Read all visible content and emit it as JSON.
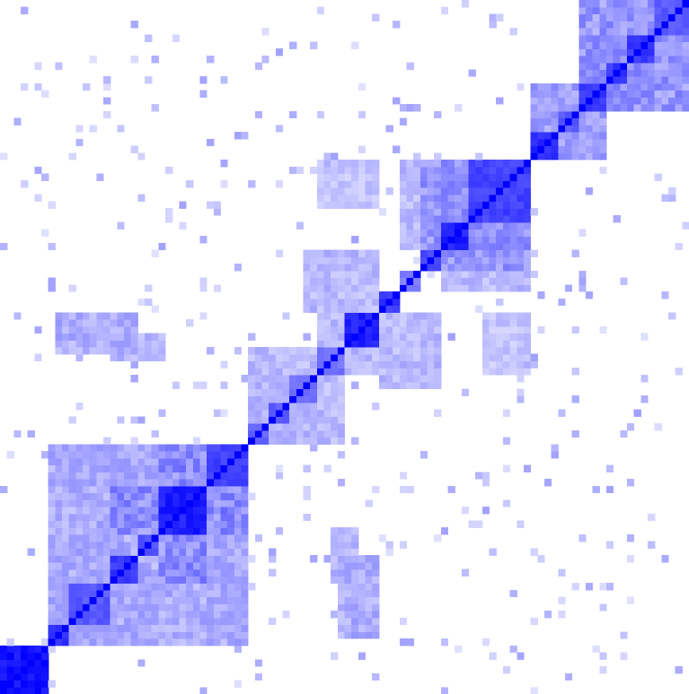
{
  "chart_data": {
    "type": "heatmap",
    "title": "",
    "xlabel": "",
    "ylabel": "",
    "grid": false,
    "legend": "none",
    "matrix_size": 100,
    "color_low": "#ffffff",
    "color_high": "#0000ff",
    "value_range": [
      0,
      1
    ],
    "clusters": [
      {
        "start": 0,
        "end": 7,
        "value": 1.0
      },
      {
        "start": 7,
        "end": 10,
        "value": 0.9
      },
      {
        "start": 10,
        "end": 16,
        "value": 0.7
      },
      {
        "start": 16,
        "end": 20,
        "value": 0.85
      },
      {
        "start": 20,
        "end": 23,
        "value": 0.75
      },
      {
        "start": 23,
        "end": 30,
        "value": 0.95
      },
      {
        "start": 30,
        "end": 36,
        "value": 0.8
      },
      {
        "start": 36,
        "end": 39,
        "value": 0.65
      },
      {
        "start": 39,
        "end": 42,
        "value": 0.7
      },
      {
        "start": 42,
        "end": 46,
        "value": 0.6
      },
      {
        "start": 46,
        "end": 50,
        "value": 0.6
      },
      {
        "start": 50,
        "end": 55,
        "value": 0.95
      },
      {
        "start": 55,
        "end": 58,
        "value": 0.85
      },
      {
        "start": 58,
        "end": 61,
        "value": 0.55
      },
      {
        "start": 61,
        "end": 64,
        "value": 0.75
      },
      {
        "start": 64,
        "end": 68,
        "value": 0.95
      },
      {
        "start": 68,
        "end": 77,
        "value": 0.8
      },
      {
        "start": 77,
        "end": 81,
        "value": 0.9
      },
      {
        "start": 81,
        "end": 84,
        "value": 0.7
      },
      {
        "start": 84,
        "end": 88,
        "value": 0.85
      },
      {
        "start": 88,
        "end": 91,
        "value": 0.85
      },
      {
        "start": 91,
        "end": 95,
        "value": 0.85
      },
      {
        "start": 95,
        "end": 100,
        "value": 0.7
      }
    ],
    "block_links": [
      {
        "rows": [
          7,
          23
        ],
        "cols": [
          7,
          36
        ],
        "value": 0.35
      },
      {
        "rows": [
          23,
          30
        ],
        "cols": [
          16,
          36
        ],
        "value": 0.5
      },
      {
        "rows": [
          30,
          36
        ],
        "cols": [
          7,
          36
        ],
        "value": 0.35
      },
      {
        "rows": [
          36,
          46
        ],
        "cols": [
          36,
          50
        ],
        "value": 0.3
      },
      {
        "rows": [
          46,
          50
        ],
        "cols": [
          46,
          55
        ],
        "value": 0.3
      },
      {
        "rows": [
          55,
          64
        ],
        "cols": [
          44,
          55
        ],
        "value": 0.3
      },
      {
        "rows": [
          58,
          64
        ],
        "cols": [
          64,
          77
        ],
        "value": 0.3
      },
      {
        "rows": [
          64,
          77
        ],
        "cols": [
          61,
          77
        ],
        "value": 0.45
      },
      {
        "rows": [
          70,
          77
        ],
        "cols": [
          46,
          55
        ],
        "value": 0.25
      },
      {
        "rows": [
          48,
          52
        ],
        "cols": [
          16,
          24
        ],
        "value": 0.3
      },
      {
        "rows": [
          8,
          20
        ],
        "cols": [
          49,
          55
        ],
        "value": 0.35
      },
      {
        "rows": [
          77,
          84
        ],
        "cols": [
          77,
          88
        ],
        "value": 0.4
      },
      {
        "rows": [
          84,
          95
        ],
        "cols": [
          84,
          100
        ],
        "value": 0.45
      },
      {
        "rows": [
          95,
          100
        ],
        "cols": [
          88,
          100
        ],
        "value": 0.35
      }
    ],
    "noise_seed": 20240517,
    "noise_density": 0.045
  }
}
